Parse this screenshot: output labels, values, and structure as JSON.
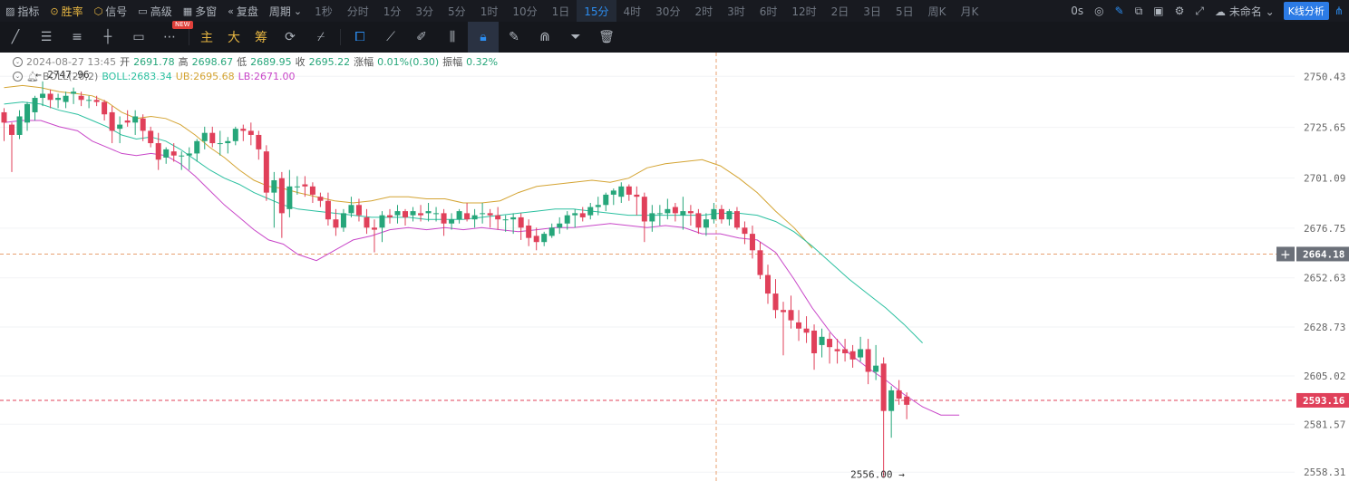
{
  "toolbar": {
    "items": [
      {
        "label": "指标",
        "icon": "indicator-icon"
      },
      {
        "label": "胜率",
        "icon": "win-rate-icon"
      },
      {
        "label": "信号",
        "icon": "signal-icon"
      },
      {
        "label": "高级",
        "icon": "advanced-icon"
      },
      {
        "label": "多窗",
        "icon": "multi-window-icon"
      },
      {
        "label": "复盘",
        "icon": "replay-icon"
      },
      {
        "label": "周期",
        "icon": "chevron-down-icon"
      }
    ],
    "timeframes": [
      "1秒",
      "分时",
      "1分",
      "3分",
      "5分",
      "1时",
      "10分",
      "1日",
      "15分",
      "4时",
      "30分",
      "2时",
      "3时",
      "6时",
      "12时",
      "2日",
      "3日",
      "5日",
      "周K",
      "月K"
    ],
    "active_timeframe": "15分",
    "new_badge": "NEW",
    "countdown": "0s",
    "account": "未命名",
    "kline_button": "K线分析"
  },
  "drawbar": {
    "gold_buttons": [
      "主",
      "大",
      "筹"
    ]
  },
  "ohlc": {
    "date": "2024-08-27 13:45",
    "open_label": "开",
    "open": "2691.78",
    "high_label": "高",
    "high": "2698.67",
    "low_label": "低",
    "low": "2689.95",
    "close_label": "收",
    "close": "2695.22",
    "change_label": "涨幅",
    "change": "0.01%(0.30)",
    "amp_label": "振幅",
    "amp": "0.32%"
  },
  "boll": {
    "name": "BOLL(20,2)",
    "mid_label": "BOLL:",
    "mid": "2683.34",
    "ub_label": "UB:",
    "ub": "2695.68",
    "lb_label": "LB:",
    "lb": "2671.00"
  },
  "chart_data": {
    "type": "candlestick",
    "y_ticks": [
      "2750.43",
      "2725.65",
      "2701.09",
      "2676.75",
      "2652.63",
      "2628.73",
      "2605.02",
      "2581.57",
      "2558.31"
    ],
    "high_marker": "2747.96",
    "low_marker": "2556.00",
    "crosshair_price": "2664.18",
    "last_price": "2593.16",
    "colors": {
      "up": "#26a67a",
      "down": "#e0405a",
      "mid": "#2bc0a0",
      "ub": "#d4a433",
      "lb": "#c846c8"
    },
    "candles": [
      [
        2733,
        2735,
        2719,
        2728
      ],
      [
        2727,
        2728,
        2704,
        2722
      ],
      [
        2722,
        2734,
        2720,
        2731
      ],
      [
        2728,
        2738,
        2724,
        2737
      ],
      [
        2733,
        2741,
        2729,
        2740
      ],
      [
        2740,
        2748,
        2736,
        2742
      ],
      [
        2742,
        2744,
        2735,
        2739
      ],
      [
        2739,
        2742,
        2735,
        2740
      ],
      [
        2738,
        2743,
        2735,
        2741
      ],
      [
        2742,
        2745,
        2737,
        2743
      ],
      [
        2741,
        2743,
        2736,
        2739
      ],
      [
        2739,
        2741,
        2735,
        2739
      ],
      [
        2739,
        2741,
        2736,
        2738
      ],
      [
        2738,
        2739,
        2729,
        2732
      ],
      [
        2733,
        2736,
        2718,
        2724
      ],
      [
        2725,
        2731,
        2718,
        2727
      ],
      [
        2729,
        2734,
        2726,
        2728
      ],
      [
        2728,
        2734,
        2722,
        2731
      ],
      [
        2730,
        2732,
        2719,
        2724
      ],
      [
        2724,
        2726,
        2716,
        2718
      ],
      [
        2718,
        2723,
        2705,
        2710
      ],
      [
        2711,
        2716,
        2708,
        2715
      ],
      [
        2714,
        2718,
        2709,
        2712
      ],
      [
        2712,
        2714,
        2705,
        2712
      ],
      [
        2712,
        2716,
        2705,
        2713
      ],
      [
        2713,
        2720,
        2709,
        2719
      ],
      [
        2719,
        2726,
        2715,
        2723
      ],
      [
        2723,
        2726,
        2716,
        2718
      ],
      [
        2718,
        2724,
        2712,
        2718
      ],
      [
        2718,
        2721,
        2713,
        2719
      ],
      [
        2719,
        2726,
        2717,
        2725
      ],
      [
        2725,
        2727,
        2719,
        2724
      ],
      [
        2724,
        2728,
        2717,
        2722
      ],
      [
        2722,
        2724,
        2710,
        2715
      ],
      [
        2714,
        2717,
        2690,
        2694
      ],
      [
        2694,
        2704,
        2677,
        2700
      ],
      [
        2701,
        2704,
        2672,
        2684
      ],
      [
        2686,
        2705,
        2682,
        2697
      ],
      [
        2697,
        2702,
        2693,
        2697
      ],
      [
        2698,
        2702,
        2692,
        2697
      ],
      [
        2697,
        2699,
        2689,
        2693
      ],
      [
        2692,
        2694,
        2687,
        2690
      ],
      [
        2690,
        2694,
        2678,
        2681
      ],
      [
        2681,
        2686,
        2673,
        2677
      ],
      [
        2677,
        2686,
        2675,
        2684
      ],
      [
        2684,
        2692,
        2682,
        2688
      ],
      [
        2688,
        2691,
        2680,
        2683
      ],
      [
        2682,
        2686,
        2674,
        2677
      ],
      [
        2677,
        2681,
        2665,
        2676
      ],
      [
        2677,
        2685,
        2670,
        2683
      ],
      [
        2683,
        2686,
        2679,
        2682
      ],
      [
        2683,
        2688,
        2679,
        2685
      ],
      [
        2685,
        2686,
        2678,
        2682
      ],
      [
        2683,
        2687,
        2680,
        2685
      ],
      [
        2684,
        2688,
        2680,
        2683
      ],
      [
        2684,
        2689,
        2680,
        2685
      ],
      [
        2684,
        2687,
        2680,
        2684
      ],
      [
        2684,
        2686,
        2673,
        2679
      ],
      [
        2679,
        2684,
        2676,
        2681
      ],
      [
        2681,
        2686,
        2679,
        2685
      ],
      [
        2684,
        2689,
        2680,
        2681
      ],
      [
        2681,
        2686,
        2677,
        2683
      ],
      [
        2684,
        2689,
        2679,
        2684
      ],
      [
        2684,
        2686,
        2677,
        2683
      ],
      [
        2683,
        2687,
        2676,
        2681
      ],
      [
        2681,
        2683,
        2675,
        2681
      ],
      [
        2681,
        2684,
        2674,
        2682
      ],
      [
        2682,
        2684,
        2671,
        2677
      ],
      [
        2678,
        2681,
        2668,
        2672
      ],
      [
        2673,
        2677,
        2666,
        2670
      ],
      [
        2670,
        2675,
        2668,
        2674
      ],
      [
        2673,
        2679,
        2672,
        2677
      ],
      [
        2677,
        2682,
        2674,
        2679
      ],
      [
        2679,
        2685,
        2676,
        2683
      ],
      [
        2683,
        2686,
        2677,
        2684
      ],
      [
        2684,
        2687,
        2680,
        2682
      ],
      [
        2683,
        2689,
        2681,
        2687
      ],
      [
        2687,
        2692,
        2683,
        2688
      ],
      [
        2688,
        2694,
        2685,
        2693
      ],
      [
        2693,
        2696,
        2688,
        2695
      ],
      [
        2692,
        2699,
        2689,
        2697
      ],
      [
        2697,
        2698,
        2690,
        2693
      ],
      [
        2693,
        2697,
        2683,
        2692
      ],
      [
        2692,
        2694,
        2670,
        2680
      ],
      [
        2680,
        2688,
        2675,
        2684
      ],
      [
        2684,
        2688,
        2678,
        2684
      ],
      [
        2684,
        2691,
        2681,
        2686
      ],
      [
        2687,
        2689,
        2680,
        2684
      ],
      [
        2683,
        2692,
        2676,
        2685
      ],
      [
        2685,
        2688,
        2678,
        2684
      ],
      [
        2684,
        2686,
        2674,
        2677
      ],
      [
        2677,
        2684,
        2673,
        2681
      ],
      [
        2681,
        2689,
        2679,
        2686
      ],
      [
        2686,
        2688,
        2679,
        2681
      ],
      [
        2681,
        2686,
        2678,
        2685
      ],
      [
        2685,
        2687,
        2676,
        2677
      ],
      [
        2677,
        2680,
        2669,
        2674
      ],
      [
        2674,
        2678,
        2662,
        2666
      ],
      [
        2666,
        2670,
        2652,
        2654
      ],
      [
        2654,
        2659,
        2640,
        2645
      ],
      [
        2645,
        2652,
        2633,
        2637
      ],
      [
        2637,
        2641,
        2615,
        2636
      ],
      [
        2637,
        2644,
        2628,
        2632
      ],
      [
        2631,
        2637,
        2622,
        2628
      ],
      [
        2628,
        2634,
        2621,
        2626
      ],
      [
        2627,
        2630,
        2608,
        2616
      ],
      [
        2620,
        2628,
        2614,
        2624
      ],
      [
        2623,
        2626,
        2611,
        2619
      ],
      [
        2618,
        2623,
        2611,
        2617
      ],
      [
        2618,
        2623,
        2612,
        2616
      ],
      [
        2617,
        2620,
        2609,
        2613
      ],
      [
        2614,
        2624,
        2612,
        2618
      ],
      [
        2618,
        2623,
        2601,
        2607
      ],
      [
        2607,
        2620,
        2603,
        2610
      ],
      [
        2611,
        2614,
        2556,
        2588
      ],
      [
        2588,
        2600,
        2575,
        2598
      ],
      [
        2598,
        2603,
        2591,
        2594
      ],
      [
        2595,
        2597,
        2584,
        2591
      ]
    ],
    "mid_band": [
      [
        0,
        2737
      ],
      [
        10,
        2738
      ],
      [
        20,
        2737
      ],
      [
        30,
        2734
      ],
      [
        40,
        2732
      ],
      [
        48,
        2729
      ],
      [
        56,
        2726
      ],
      [
        64,
        2722
      ],
      [
        72,
        2720
      ],
      [
        80,
        2721
      ],
      [
        88,
        2719
      ],
      [
        96,
        2715
      ],
      [
        104,
        2710
      ],
      [
        112,
        2705
      ],
      [
        120,
        2701
      ],
      [
        128,
        2698
      ],
      [
        136,
        2694
      ],
      [
        144,
        2691
      ],
      [
        152,
        2688
      ],
      [
        160,
        2686
      ],
      [
        170,
        2685
      ],
      [
        180,
        2684
      ],
      [
        190,
        2683
      ],
      [
        200,
        2682
      ],
      [
        210,
        2682
      ],
      [
        220,
        2682
      ],
      [
        230,
        2681
      ],
      [
        240,
        2681
      ],
      [
        250,
        2681
      ],
      [
        260,
        2682
      ],
      [
        270,
        2683
      ],
      [
        280,
        2684
      ],
      [
        290,
        2685
      ],
      [
        300,
        2686
      ],
      [
        310,
        2686
      ],
      [
        320,
        2685
      ],
      [
        330,
        2684
      ],
      [
        340,
        2683
      ],
      [
        350,
        2683
      ],
      [
        360,
        2683
      ],
      [
        370,
        2683
      ],
      [
        380,
        2683
      ],
      [
        390,
        2684
      ],
      [
        400,
        2684
      ],
      [
        410,
        2683
      ],
      [
        420,
        2680
      ],
      [
        430,
        2675
      ],
      [
        440,
        2668
      ],
      [
        450,
        2660
      ],
      [
        460,
        2652
      ],
      [
        470,
        2645
      ],
      [
        480,
        2638
      ],
      [
        490,
        2630
      ],
      [
        500,
        2621
      ]
    ],
    "upper_band": [
      [
        0,
        2745
      ],
      [
        10,
        2746
      ],
      [
        20,
        2745
      ],
      [
        30,
        2743
      ],
      [
        40,
        2742
      ],
      [
        48,
        2741
      ],
      [
        56,
        2738
      ],
      [
        64,
        2733
      ],
      [
        72,
        2730
      ],
      [
        80,
        2731
      ],
      [
        88,
        2730
      ],
      [
        96,
        2727
      ],
      [
        104,
        2722
      ],
      [
        112,
        2716
      ],
      [
        120,
        2711
      ],
      [
        128,
        2705
      ],
      [
        136,
        2700
      ],
      [
        144,
        2697
      ],
      [
        152,
        2696
      ],
      [
        160,
        2694
      ],
      [
        170,
        2692
      ],
      [
        180,
        2690
      ],
      [
        190,
        2689
      ],
      [
        200,
        2690
      ],
      [
        210,
        2692
      ],
      [
        220,
        2692
      ],
      [
        230,
        2691
      ],
      [
        240,
        2691
      ],
      [
        250,
        2689
      ],
      [
        260,
        2689
      ],
      [
        270,
        2690
      ],
      [
        280,
        2694
      ],
      [
        290,
        2697
      ],
      [
        300,
        2698
      ],
      [
        310,
        2699
      ],
      [
        320,
        2700
      ],
      [
        330,
        2699
      ],
      [
        340,
        2701
      ],
      [
        350,
        2706
      ],
      [
        360,
        2708
      ],
      [
        370,
        2709
      ],
      [
        380,
        2710
      ],
      [
        390,
        2707
      ],
      [
        400,
        2701
      ],
      [
        410,
        2694
      ],
      [
        420,
        2685
      ],
      [
        430,
        2677
      ],
      [
        440,
        2667
      ]
    ],
    "lower_band": [
      [
        0,
        2728
      ],
      [
        10,
        2729
      ],
      [
        20,
        2729
      ],
      [
        30,
        2726
      ],
      [
        40,
        2724
      ],
      [
        48,
        2719
      ],
      [
        56,
        2716
      ],
      [
        64,
        2713
      ],
      [
        72,
        2712
      ],
      [
        80,
        2713
      ],
      [
        88,
        2712
      ],
      [
        96,
        2708
      ],
      [
        104,
        2702
      ],
      [
        112,
        2695
      ],
      [
        120,
        2688
      ],
      [
        128,
        2682
      ],
      [
        136,
        2676
      ],
      [
        144,
        2671
      ],
      [
        152,
        2669
      ],
      [
        160,
        2664
      ],
      [
        170,
        2661
      ],
      [
        180,
        2666
      ],
      [
        190,
        2671
      ],
      [
        200,
        2673
      ],
      [
        210,
        2676
      ],
      [
        220,
        2677
      ],
      [
        230,
        2676
      ],
      [
        240,
        2677
      ],
      [
        250,
        2676
      ],
      [
        260,
        2677
      ],
      [
        270,
        2676
      ],
      [
        280,
        2675
      ],
      [
        290,
        2676
      ],
      [
        300,
        2677
      ],
      [
        310,
        2677
      ],
      [
        320,
        2678
      ],
      [
        330,
        2679
      ],
      [
        340,
        2678
      ],
      [
        350,
        2677
      ],
      [
        360,
        2678
      ],
      [
        370,
        2677
      ],
      [
        380,
        2674
      ],
      [
        390,
        2674
      ],
      [
        400,
        2672
      ],
      [
        410,
        2671
      ],
      [
        420,
        2665
      ],
      [
        430,
        2652
      ],
      [
        440,
        2638
      ],
      [
        450,
        2626
      ],
      [
        460,
        2616
      ],
      [
        470,
        2609
      ],
      [
        480,
        2603
      ],
      [
        490,
        2596
      ],
      [
        500,
        2590
      ],
      [
        510,
        2586
      ],
      [
        520,
        2586
      ]
    ],
    "ylim": [
      2554,
      2762
    ]
  }
}
